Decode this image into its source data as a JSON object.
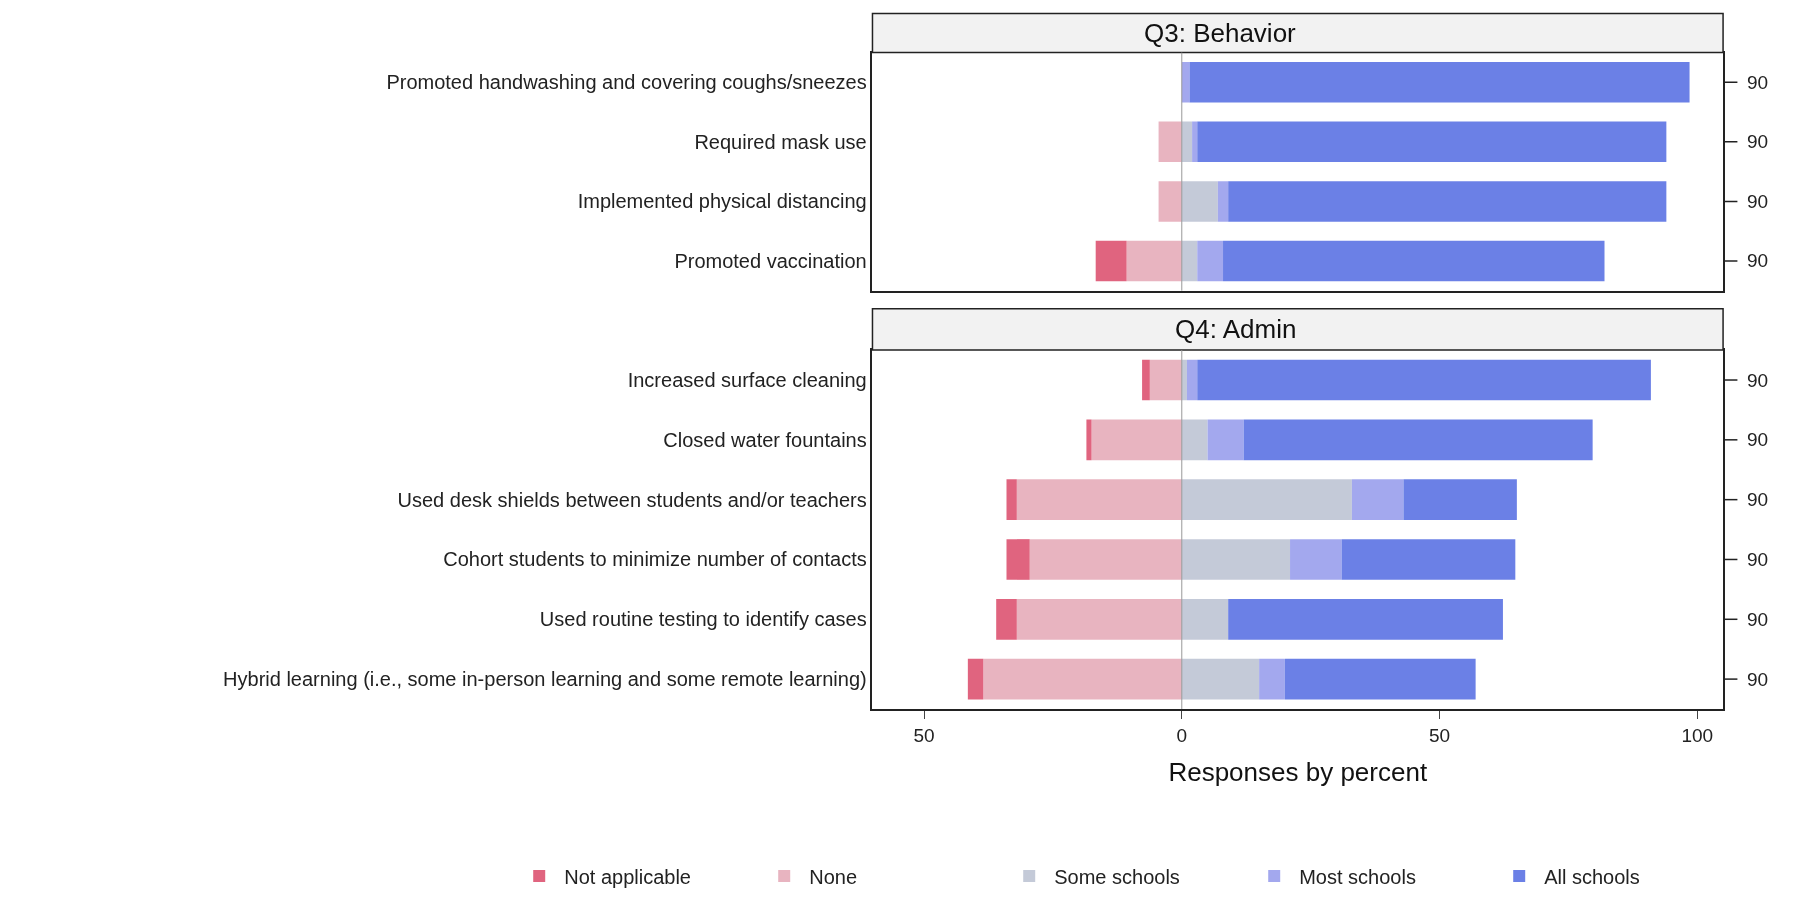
{
  "chart_data": [
    {
      "type": "bar",
      "orientation": "horizontal",
      "stacked": true,
      "title": "Q3: Behavior",
      "categories": [
        "Promoted handwashing and covering coughs/sneezes",
        "Required mask use",
        "Implemented physical distancing",
        "Promoted vaccination"
      ],
      "series": [
        {
          "color": "#e8b4c0",
          "values": [
            0,
            -4.5,
            -4.5,
            -10.7
          ]
        },
        {
          "color": "#e0647f",
          "values": [
            0,
            0,
            0,
            -6
          ]
        },
        {
          "color": "#c4cad8",
          "values": [
            0,
            2,
            7,
            3
          ]
        },
        {
          "color": "#a3a8ee",
          "values": [
            1.5,
            1,
            2,
            5
          ]
        },
        {
          "color": "#6b80e6",
          "values": [
            97,
            91,
            85,
            74
          ]
        }
      ],
      "xlim": [
        -60,
        105
      ],
      "tick_labels": "y",
      "ref_lines": [
        {
          "axis": "x",
          "value": 0,
          "color": "#999999"
        }
      ],
      "annotations": [
        "90",
        "90",
        "90",
        "90"
      ]
    },
    {
      "type": "bar",
      "orientation": "horizontal",
      "stacked": true,
      "title": "Q4: Admin",
      "xlabel": "Responses by percent",
      "categories": [
        "Increased surface cleaning",
        "Closed water fountains",
        "Used desk shields between students and/or teachers",
        "Cohort students to minimize number of contacts",
        "Used routine testing to identify cases",
        "Hybrid learning (i.e., some in-person learning and some remote learning)"
      ],
      "series": [
        {
          "name": "None",
          "color": "#e8b4c0",
          "values": [
            -6.2,
            -17.5,
            -32,
            -29.5,
            -32,
            -38.5
          ]
        },
        {
          "name": "Not applicable",
          "color": "#e0647f",
          "values": [
            -1.5,
            -1,
            -2,
            -4.5,
            -4,
            -3
          ]
        },
        {
          "name": "Some schools",
          "color": "#c4cad8",
          "values": [
            1,
            5,
            33,
            21,
            9,
            15
          ]
        },
        {
          "name": "Most schools",
          "color": "#a3a8ee",
          "values": [
            2,
            7,
            10,
            10,
            0,
            5
          ]
        },
        {
          "name": "All schools",
          "color": "#6b80e6",
          "values": [
            88,
            67.7,
            22,
            33.7,
            53.3,
            37
          ]
        }
      ],
      "xlim": [
        -60,
        105
      ],
      "xticks": [
        {
          "value": -50,
          "label": "50"
        },
        0,
        {
          "value": 50,
          "label": "50"
        },
        100
      ],
      "legend": "bottom",
      "ref_lines": [
        {
          "axis": "x",
          "value": 0,
          "color": "#999999"
        }
      ],
      "annotations": [
        "90",
        "90",
        "90",
        "90",
        "90",
        "90"
      ]
    }
  ]
}
